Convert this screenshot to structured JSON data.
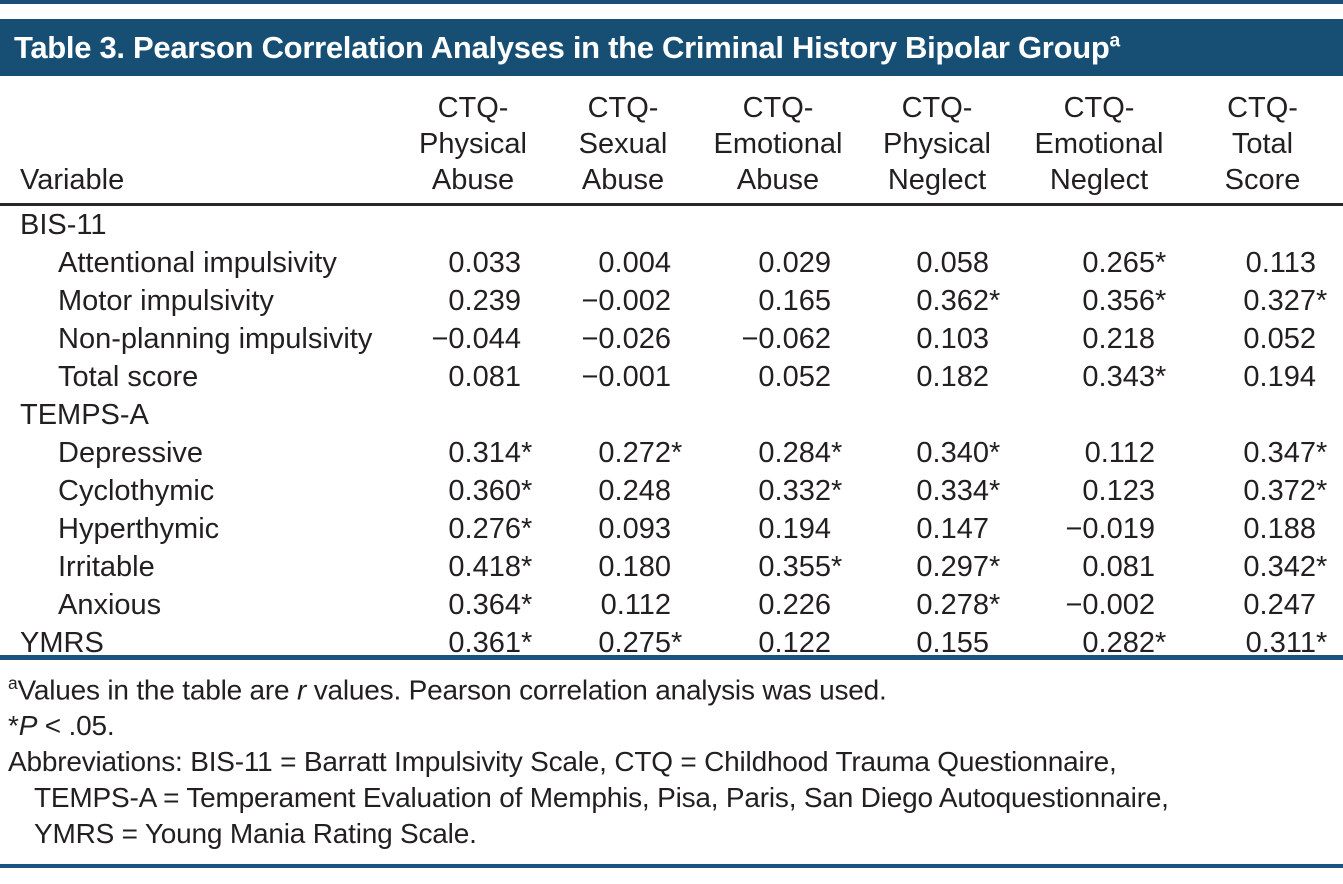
{
  "page": {
    "background": "#ffffff",
    "banner_color": "#174e74",
    "rule_color": "#1a5380",
    "text_color": "#231f20"
  },
  "table": {
    "title": "Table 3. Pearson Correlation Analyses in the Criminal History Bipolar Group",
    "title_superscript": "a",
    "variable_header": "Variable",
    "columns": [
      [
        "CTQ-",
        "Physical",
        "Abuse"
      ],
      [
        "CTQ-",
        "Sexual",
        "Abuse"
      ],
      [
        "CTQ-",
        "Emotional",
        "Abuse"
      ],
      [
        "CTQ-",
        "Physical",
        "Neglect"
      ],
      [
        "CTQ-",
        "Emotional",
        "Neglect"
      ],
      [
        "CTQ-",
        "Total",
        "Score"
      ]
    ],
    "rows": [
      {
        "label": "BIS-11"
      },
      {
        "label": "Attentional impulsivity",
        "values": [
          {
            "v": "0.033"
          },
          {
            "v": "0.004"
          },
          {
            "v": "0.029"
          },
          {
            "v": "0.058"
          },
          {
            "v": "0.265",
            "s": "*"
          },
          {
            "v": "0.113"
          }
        ]
      },
      {
        "label": "Motor impulsivity",
        "values": [
          {
            "v": "0.239"
          },
          {
            "v": "−0.002"
          },
          {
            "v": "0.165"
          },
          {
            "v": "0.362",
            "s": "*"
          },
          {
            "v": "0.356",
            "s": "*"
          },
          {
            "v": "0.327",
            "s": "*"
          }
        ]
      },
      {
        "label": "Non-planning impulsivity",
        "values": [
          {
            "v": "−0.044"
          },
          {
            "v": "−0.026"
          },
          {
            "v": "−0.062"
          },
          {
            "v": "0.103"
          },
          {
            "v": "0.218"
          },
          {
            "v": "0.052"
          }
        ]
      },
      {
        "label": "Total score",
        "values": [
          {
            "v": "0.081"
          },
          {
            "v": "−0.001"
          },
          {
            "v": "0.052"
          },
          {
            "v": "0.182"
          },
          {
            "v": "0.343",
            "s": "*"
          },
          {
            "v": "0.194"
          }
        ]
      },
      {
        "label": "TEMPS-A"
      },
      {
        "label": "Depressive",
        "values": [
          {
            "v": "0.314",
            "s": "*"
          },
          {
            "v": "0.272",
            "s": "*"
          },
          {
            "v": "0.284",
            "s": "*"
          },
          {
            "v": "0.340",
            "s": "*"
          },
          {
            "v": "0.112"
          },
          {
            "v": "0.347",
            "s": "*"
          }
        ]
      },
      {
        "label": "Cyclothymic",
        "values": [
          {
            "v": "0.360",
            "s": "*"
          },
          {
            "v": "0.248"
          },
          {
            "v": "0.332",
            "s": "*"
          },
          {
            "v": "0.334",
            "s": "*"
          },
          {
            "v": "0.123"
          },
          {
            "v": "0.372",
            "s": "*"
          }
        ]
      },
      {
        "label": "Hyperthymic",
        "values": [
          {
            "v": "0.276",
            "s": "*"
          },
          {
            "v": "0.093"
          },
          {
            "v": "0.194"
          },
          {
            "v": "0.147"
          },
          {
            "v": "−0.019"
          },
          {
            "v": "0.188"
          }
        ]
      },
      {
        "label": "Irritable",
        "values": [
          {
            "v": "0.418",
            "s": "*"
          },
          {
            "v": "0.180"
          },
          {
            "v": "0.355",
            "s": "*"
          },
          {
            "v": "0.297",
            "s": "*"
          },
          {
            "v": "0.081"
          },
          {
            "v": "0.342",
            "s": "*"
          }
        ]
      },
      {
        "label": "Anxious",
        "values": [
          {
            "v": "0.364",
            "s": "*"
          },
          {
            "v": "0.112"
          },
          {
            "v": "0.226"
          },
          {
            "v": "0.278",
            "s": "*"
          },
          {
            "v": "−0.002"
          },
          {
            "v": "0.247"
          }
        ]
      },
      {
        "label": "YMRS",
        "values": [
          {
            "v": "0.361",
            "s": "*"
          },
          {
            "v": "0.275",
            "s": "*"
          },
          {
            "v": "0.122"
          },
          {
            "v": "0.155"
          },
          {
            "v": "0.282",
            "s": "*"
          },
          {
            "v": "0.311",
            "s": "*"
          }
        ]
      }
    ]
  },
  "footnotes": {
    "sup_a": "a",
    "f1_pre": "Values in the table are ",
    "f1_italic": "r",
    "f1_post": " values. Pearson correlation analysis was used.",
    "f2_star": "*",
    "f2_italic": "P",
    "f2_post": " < .05.",
    "abbrev": [
      "Abbreviations: BIS-11 = Barratt Impulsivity Scale, CTQ = Childhood Trauma Questionnaire,",
      "TEMPS-A = Temperament Evaluation of Memphis, Pisa, Paris, San Diego Autoquestionnaire,",
      "YMRS = Young Mania Rating Scale."
    ]
  }
}
